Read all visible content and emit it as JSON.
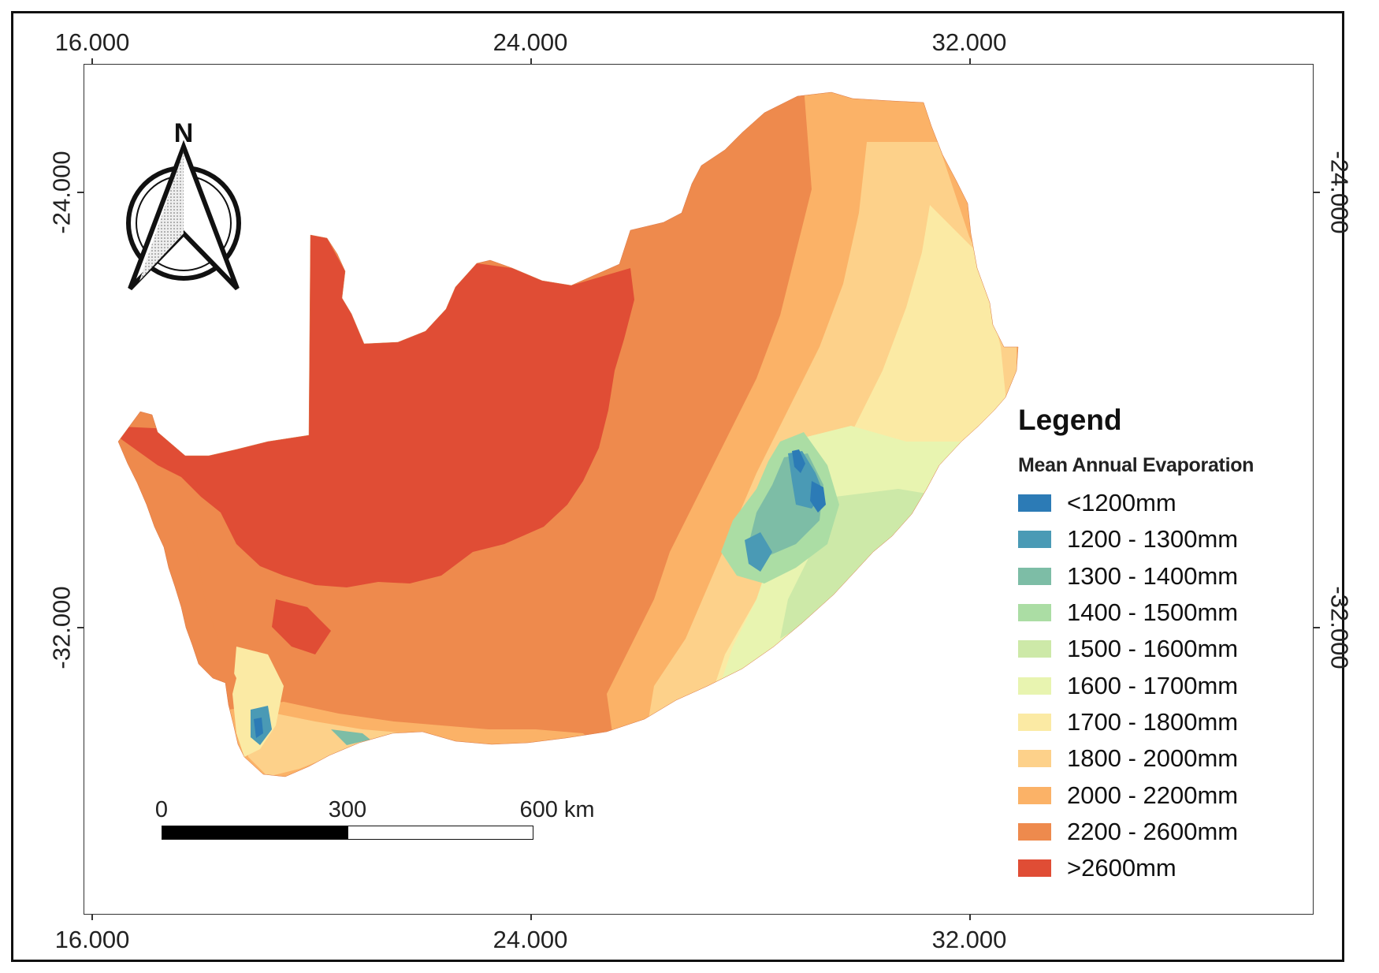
{
  "axes": {
    "top_labels": [
      "16.000",
      "24.000",
      "32.000"
    ],
    "bottom_labels": [
      "16.000",
      "24.000",
      "32.000"
    ],
    "left_labels": [
      "-24.000",
      "-32.000"
    ],
    "right_labels": [
      "-24.000",
      "-32.000"
    ]
  },
  "north_arrow": {
    "label": "N",
    "icon": "north-arrow-icon"
  },
  "legend": {
    "title": "Legend",
    "subtitle": "Mean Annual Evaporation",
    "items": [
      {
        "label": "<1200mm",
        "color": "#2c7bb6"
      },
      {
        "label": "1200 - 1300mm",
        "color": "#4a9ab5"
      },
      {
        "label": "1300 - 1400mm",
        "color": "#7dbda6"
      },
      {
        "label": "1400 - 1500mm",
        "color": "#abdda4"
      },
      {
        "label": "1500 - 1600mm",
        "color": "#cde9a8"
      },
      {
        "label": "1600 - 1700mm",
        "color": "#e8f4b0"
      },
      {
        "label": "1700 - 1800mm",
        "color": "#fbeaa4"
      },
      {
        "label": "1800 - 2000mm",
        "color": "#fdd18a"
      },
      {
        "label": "2000 - 2200mm",
        "color": "#fbb267"
      },
      {
        "label": "2200 - 2600mm",
        "color": "#ee8a4d"
      },
      {
        "label": ">2600mm",
        "color": "#e04d35"
      }
    ]
  },
  "scale_bar": {
    "labels": [
      "0",
      "300",
      "600 km"
    ]
  }
}
